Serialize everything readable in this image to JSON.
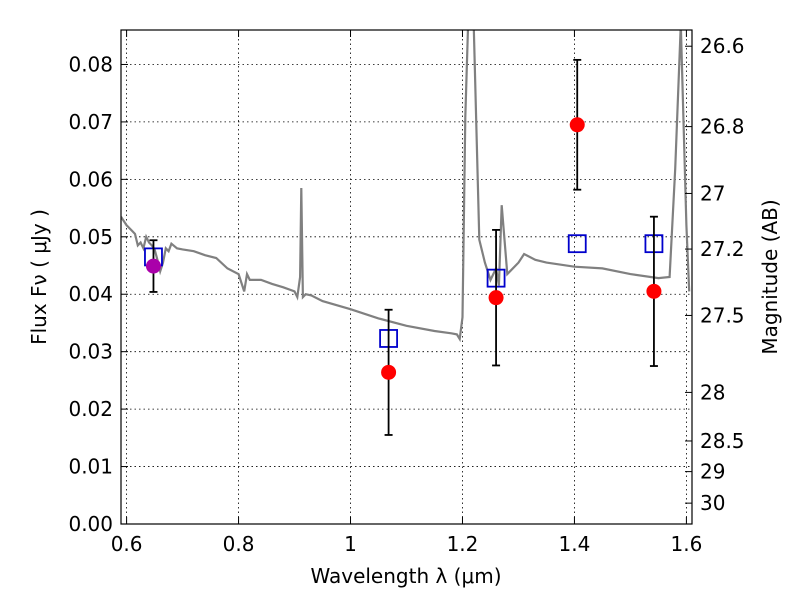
{
  "chart_data": {
    "type": "scatter",
    "title": "",
    "xlabel": "Wavelength  λ (μm)",
    "ylabel": "Flux  Fν  ( μJy )",
    "y2label": "Magnitude (AB)",
    "xlim": [
      0.59,
      1.61
    ],
    "ylim": [
      0.0,
      0.086
    ],
    "grid": true,
    "x_ticks": [
      {
        "value": 0.6,
        "label": "0.6"
      },
      {
        "value": 0.8,
        "label": "0.8"
      },
      {
        "value": 1.0,
        "label": "1"
      },
      {
        "value": 1.2,
        "label": "1.2"
      },
      {
        "value": 1.4,
        "label": "1.4"
      },
      {
        "value": 1.6,
        "label": "1.6"
      }
    ],
    "y_ticks": [
      {
        "value": 0.0,
        "label": "0.00"
      },
      {
        "value": 0.01,
        "label": "0.01"
      },
      {
        "value": 0.02,
        "label": "0.02"
      },
      {
        "value": 0.03,
        "label": "0.03"
      },
      {
        "value": 0.04,
        "label": "0.04"
      },
      {
        "value": 0.05,
        "label": "0.05"
      },
      {
        "value": 0.06,
        "label": "0.06"
      },
      {
        "value": 0.07,
        "label": "0.07"
      },
      {
        "value": 0.08,
        "label": "0.08"
      }
    ],
    "y2_ticks": [
      {
        "value": 26.6,
        "label": "26.6"
      },
      {
        "value": 26.8,
        "label": "26.8"
      },
      {
        "value": 27.0,
        "label": "27"
      },
      {
        "value": 27.2,
        "label": "27.2"
      },
      {
        "value": 27.5,
        "label": "27.5"
      },
      {
        "value": 28.0,
        "label": "28"
      },
      {
        "value": 28.5,
        "label": "28.5"
      },
      {
        "value": 29.0,
        "label": "29"
      },
      {
        "value": 30.0,
        "label": "30"
      }
    ],
    "series": [
      {
        "kind": "line",
        "color": "#808080",
        "x": [
          0.59,
          0.6,
          0.61,
          0.615,
          0.62,
          0.625,
          0.63,
          0.635,
          0.64,
          0.645,
          0.65,
          0.655,
          0.66,
          0.665,
          0.67,
          0.675,
          0.68,
          0.69,
          0.7,
          0.72,
          0.74,
          0.76,
          0.78,
          0.8,
          0.81,
          0.815,
          0.82,
          0.84,
          0.86,
          0.88,
          0.9,
          0.905,
          0.91,
          0.912,
          0.915,
          0.92,
          0.93,
          0.95,
          1.0,
          1.05,
          1.1,
          1.15,
          1.18,
          1.19,
          1.195,
          1.2,
          1.205,
          1.21,
          1.22,
          1.23,
          1.24,
          1.25,
          1.26,
          1.265,
          1.27,
          1.28,
          1.3,
          1.31,
          1.33,
          1.35,
          1.4,
          1.45,
          1.5,
          1.55,
          1.57,
          1.58,
          1.59,
          1.6,
          1.605
        ],
        "y": [
          0.0535,
          0.052,
          0.051,
          0.0505,
          0.0485,
          0.049,
          0.048,
          0.05,
          0.049,
          0.0485,
          0.0478,
          0.046,
          0.044,
          0.0455,
          0.048,
          0.0475,
          0.0488,
          0.048,
          0.0478,
          0.0475,
          0.0468,
          0.0463,
          0.0445,
          0.0435,
          0.0405,
          0.0435,
          0.0425,
          0.0425,
          0.0418,
          0.0412,
          0.0405,
          0.0395,
          0.043,
          0.0585,
          0.0395,
          0.04,
          0.0398,
          0.0388,
          0.0374,
          0.0358,
          0.0345,
          0.0336,
          0.0332,
          0.033,
          0.0322,
          0.036,
          0.0708,
          0.087,
          0.087,
          0.0495,
          0.0455,
          0.0425,
          0.0445,
          0.0415,
          0.0555,
          0.0435,
          0.0455,
          0.047,
          0.046,
          0.0455,
          0.0448,
          0.0445,
          0.0435,
          0.0428,
          0.043,
          0.0618,
          0.087,
          0.052,
          0.0405
        ]
      },
      {
        "kind": "points",
        "marker": "square-open",
        "color": "#0000cc",
        "x": [
          0.648,
          1.068,
          1.26,
          1.405,
          1.542
        ],
        "y": [
          0.0465,
          0.0323,
          0.0428,
          0.0488,
          0.0488
        ]
      },
      {
        "kind": "points",
        "marker": "circle",
        "color": "#ff0000",
        "x": [
          0.648,
          1.068,
          1.26,
          1.405,
          1.542
        ],
        "y": [
          0.0449,
          0.0264,
          0.0394,
          0.0695,
          0.0405
        ],
        "yerr_low": [
          0.0045,
          0.0109,
          0.0118,
          0.0113,
          0.013
        ],
        "yerr_high": [
          0.0045,
          0.0109,
          0.0118,
          0.0113,
          0.013
        ],
        "colors": [
          "#aa00aa",
          "#ff0000",
          "#ff0000",
          "#ff0000",
          "#ff0000"
        ]
      }
    ]
  }
}
